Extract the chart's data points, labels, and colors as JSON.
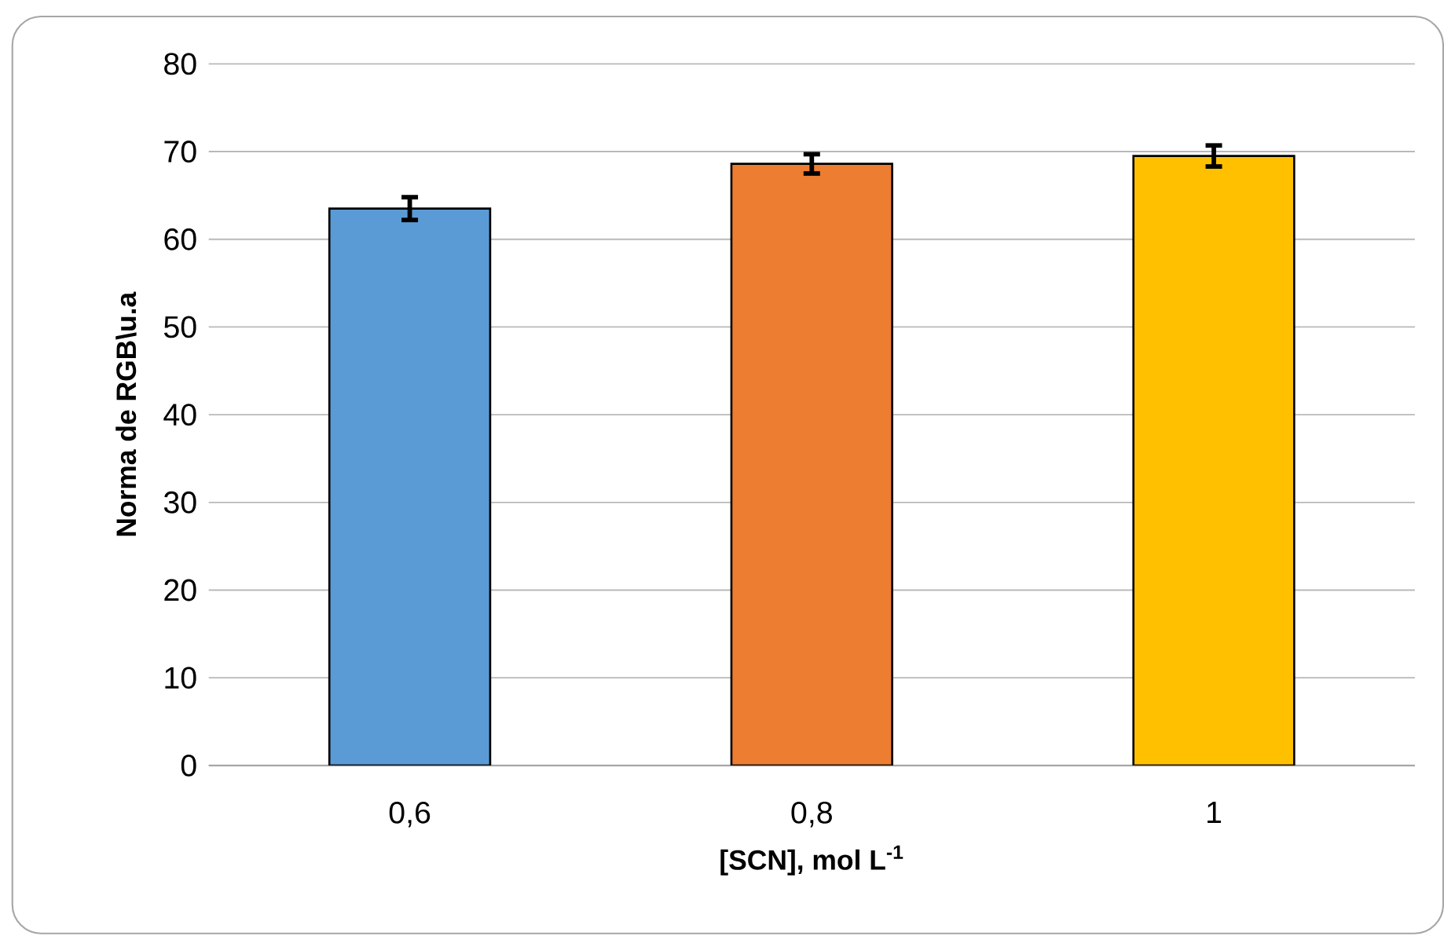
{
  "chart_data": {
    "type": "bar",
    "xlabel": "**[SCN], mol L$^{-1}$**",
    "ylabel": "**Norma de RGB\\u.a**",
    "categories": [
      "0,6",
      "0,8",
      "1"
    ],
    "values": [
      63.5,
      68.6,
      69.5
    ],
    "colors": [
      "#5b9bd5",
      "#ed7d31",
      "#ffc000"
    ],
    "errors": [
      1.3,
      1.1,
      1.2
    ],
    "ylim": [
      0,
      80
    ],
    "yticks": [
      0,
      10,
      20,
      30,
      40,
      50,
      60,
      70,
      80
    ],
    "grid": "y"
  }
}
